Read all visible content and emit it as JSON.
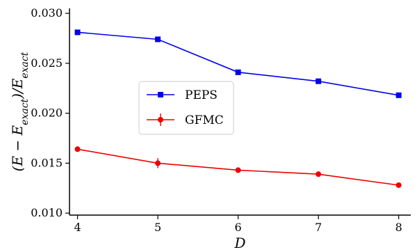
{
  "chart_data": {
    "type": "line",
    "title": "",
    "xlabel": "D",
    "ylabel": "(E − E_exact)/E_exact",
    "ylabel_parts": {
      "pre": "(E − E",
      "sub1": "exact",
      "mid": ")/E",
      "sub2": "exact"
    },
    "x": [
      4,
      5,
      6,
      7,
      8
    ],
    "x_ticks": [
      "4",
      "5",
      "6",
      "7",
      "8"
    ],
    "y_ticks": [
      "0.010",
      "0.015",
      "0.020",
      "0.025",
      "0.030"
    ],
    "y_tick_values": [
      0.01,
      0.015,
      0.02,
      0.025,
      0.03
    ],
    "xlim": [
      3.9,
      8.15
    ],
    "ylim": [
      0.0098,
      0.0305
    ],
    "grid": false,
    "legend_position": "center-left",
    "series": [
      {
        "name": "PEPS",
        "color": "#0000ee",
        "marker": "square",
        "values": [
          0.0281,
          0.0274,
          0.0241,
          0.0232,
          0.0218
        ]
      },
      {
        "name": "GFMC",
        "color": "#ee0000",
        "marker": "circle",
        "values": [
          0.0164,
          0.015,
          0.0143,
          0.0139,
          0.0128
        ],
        "errors": [
          0.0001,
          0.0005,
          0.0001,
          0.0001,
          0.0001
        ]
      }
    ]
  }
}
